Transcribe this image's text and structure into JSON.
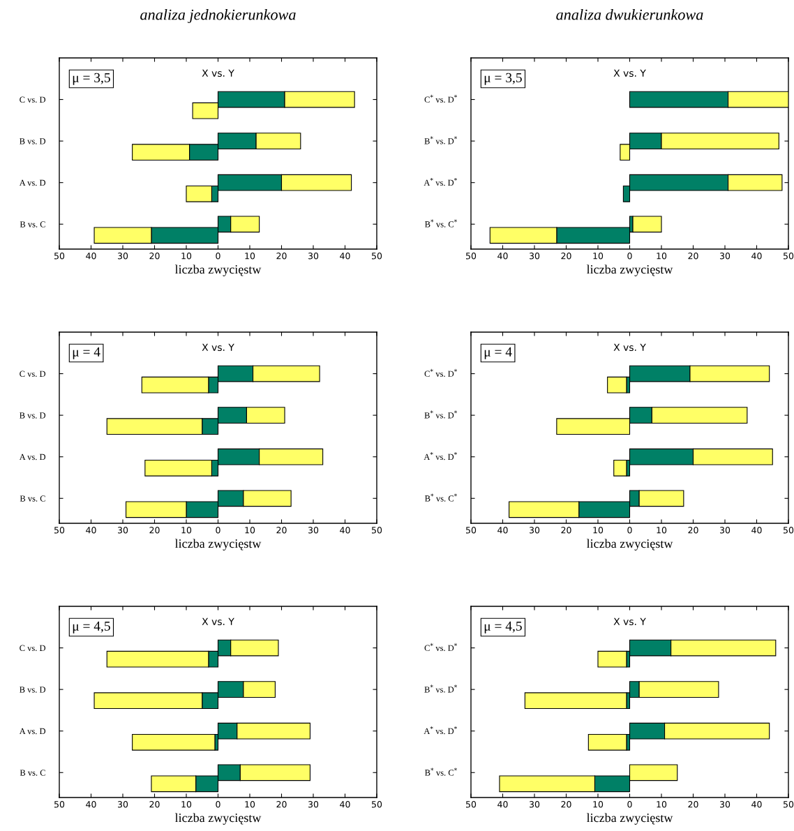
{
  "chart_data": [
    {
      "type": "bar",
      "orientation": "horizontal",
      "stacked": true,
      "title": "analiza jednokierunkowa",
      "subtitle": "X vs. Y",
      "xlabel": "liczba zwycięstw",
      "annotations": [
        "μ = 3,5"
      ],
      "categories": [
        "C vs. D",
        "B vs. D",
        "A vs. D",
        "B vs. C"
      ],
      "xlim": [
        -50,
        50
      ],
      "xticks": [
        {
          "value": -50,
          "label": "50"
        },
        {
          "value": -40,
          "label": "40"
        },
        {
          "value": -30,
          "label": "30"
        },
        {
          "value": -20,
          "label": "20"
        },
        {
          "value": -10,
          "label": "10"
        },
        0,
        10,
        20,
        30,
        40,
        50
      ],
      "series": [
        {
          "color": "#008066",
          "values": [
            21,
            12,
            20,
            4
          ]
        },
        {
          "color": "#ffff66",
          "values": [
            22,
            14,
            22,
            9
          ]
        },
        {
          "color": "#008066",
          "values": [
            null,
            -9,
            -2,
            -21
          ]
        },
        {
          "color": "#ffff66",
          "values": [
            -8,
            -18,
            -8,
            -18
          ]
        }
      ]
    },
    {
      "type": "bar",
      "orientation": "horizontal",
      "stacked": true,
      "title": "analiza dwukierunkowa",
      "subtitle": "X vs. Y",
      "xlabel": "liczba zwycięstw",
      "annotations": [
        "μ = 3,5"
      ],
      "categories": [
        "C$^{*}$ vs. D$^{*}$",
        "B$^{*}$ vs. D$^{*}$",
        "A$^{*}$ vs. D$^{*}$",
        "B$^{*}$ vs. C$^{*}$"
      ],
      "xlim": [
        -50,
        50
      ],
      "xticks": [
        {
          "value": -50,
          "label": "50"
        },
        {
          "value": -40,
          "label": "40"
        },
        {
          "value": -30,
          "label": "30"
        },
        {
          "value": -20,
          "label": "20"
        },
        {
          "value": -10,
          "label": "10"
        },
        0,
        10,
        20,
        30,
        40,
        50
      ],
      "series": [
        {
          "color": "#008066",
          "values": [
            31,
            10,
            31,
            1
          ]
        },
        {
          "color": "#ffff66",
          "values": [
            19,
            37,
            17,
            9
          ]
        },
        {
          "color": "#008066",
          "values": [
            null,
            null,
            -2,
            -23
          ]
        },
        {
          "color": "#ffff66",
          "values": [
            null,
            -3,
            null,
            -21
          ]
        }
      ]
    },
    {
      "type": "bar",
      "orientation": "horizontal",
      "stacked": true,
      "subtitle": "X vs. Y",
      "xlabel": "liczba zwycięstw",
      "annotations": [
        "μ = 4"
      ],
      "categories": [
        "C vs. D",
        "B vs. D",
        "A vs. D",
        "B vs. C"
      ],
      "xlim": [
        -50,
        50
      ],
      "xticks": [
        {
          "value": -50,
          "label": "50"
        },
        {
          "value": -40,
          "label": "40"
        },
        {
          "value": -30,
          "label": "30"
        },
        {
          "value": -20,
          "label": "20"
        },
        {
          "value": -10,
          "label": "10"
        },
        0,
        10,
        20,
        30,
        40,
        50
      ],
      "series": [
        {
          "color": "#008066",
          "values": [
            11,
            9,
            13,
            8
          ]
        },
        {
          "color": "#ffff66",
          "values": [
            21,
            12,
            20,
            15
          ]
        },
        {
          "color": "#008066",
          "values": [
            -3,
            -5,
            -2,
            -10
          ]
        },
        {
          "color": "#ffff66",
          "values": [
            -21,
            -30,
            -21,
            -19
          ]
        }
      ]
    },
    {
      "type": "bar",
      "orientation": "horizontal",
      "stacked": true,
      "subtitle": "X vs. Y",
      "xlabel": "liczba zwycięstw",
      "annotations": [
        "μ = 4"
      ],
      "categories": [
        "C$^{*}$ vs. D$^{*}$",
        "B$^{*}$ vs. D$^{*}$",
        "A$^{*}$ vs. D$^{*}$",
        "B$^{*}$ vs. C$^{*}$"
      ],
      "xlim": [
        -50,
        50
      ],
      "xticks": [
        {
          "value": -50,
          "label": "50"
        },
        {
          "value": -40,
          "label": "40"
        },
        {
          "value": -30,
          "label": "30"
        },
        {
          "value": -20,
          "label": "20"
        },
        {
          "value": -10,
          "label": "10"
        },
        0,
        10,
        20,
        30,
        40,
        50
      ],
      "series": [
        {
          "color": "#008066",
          "values": [
            19,
            7,
            20,
            3
          ]
        },
        {
          "color": "#ffff66",
          "values": [
            25,
            30,
            25,
            14
          ]
        },
        {
          "color": "#008066",
          "values": [
            -1,
            null,
            -1,
            -16
          ]
        },
        {
          "color": "#ffff66",
          "values": [
            -6,
            -23,
            -4,
            -22
          ]
        }
      ]
    },
    {
      "type": "bar",
      "orientation": "horizontal",
      "stacked": true,
      "subtitle": "X vs. Y",
      "xlabel": "liczba zwycięstw",
      "annotations": [
        "μ = 4,5"
      ],
      "categories": [
        "C vs. D",
        "B vs. D",
        "A vs. D",
        "B vs. C"
      ],
      "xlim": [
        -50,
        50
      ],
      "xticks": [
        {
          "value": -50,
          "label": "50"
        },
        {
          "value": -40,
          "label": "40"
        },
        {
          "value": -30,
          "label": "30"
        },
        {
          "value": -20,
          "label": "20"
        },
        {
          "value": -10,
          "label": "10"
        },
        0,
        10,
        20,
        30,
        40,
        50
      ],
      "series": [
        {
          "color": "#008066",
          "values": [
            4,
            8,
            6,
            7
          ]
        },
        {
          "color": "#ffff66",
          "values": [
            15,
            10,
            23,
            22
          ]
        },
        {
          "color": "#008066",
          "values": [
            -3,
            -5,
            -1,
            -7
          ]
        },
        {
          "color": "#ffff66",
          "values": [
            -32,
            -34,
            -26,
            -14
          ]
        }
      ]
    },
    {
      "type": "bar",
      "orientation": "horizontal",
      "stacked": true,
      "subtitle": "X vs. Y",
      "xlabel": "liczba zwycięstw",
      "annotations": [
        "μ = 4,5"
      ],
      "categories": [
        "C$^{*}$ vs. D$^{*}$",
        "B$^{*}$ vs. D$^{*}$",
        "A$^{*}$ vs. D$^{*}$",
        "B$^{*}$ vs. C$^{*}$"
      ],
      "xlim": [
        -50,
        50
      ],
      "xticks": [
        {
          "value": -50,
          "label": "50"
        },
        {
          "value": -40,
          "label": "40"
        },
        {
          "value": -30,
          "label": "30"
        },
        {
          "value": -20,
          "label": "20"
        },
        {
          "value": -10,
          "label": "10"
        },
        0,
        10,
        20,
        30,
        40,
        50
      ],
      "series": [
        {
          "color": "#008066",
          "values": [
            13,
            3,
            11,
            null
          ]
        },
        {
          "color": "#ffff66",
          "values": [
            33,
            25,
            33,
            15
          ]
        },
        {
          "color": "#008066",
          "values": [
            -1,
            -1,
            -1,
            -11
          ]
        },
        {
          "color": "#ffff66",
          "values": [
            -9,
            -32,
            -12,
            -30
          ]
        }
      ]
    }
  ]
}
